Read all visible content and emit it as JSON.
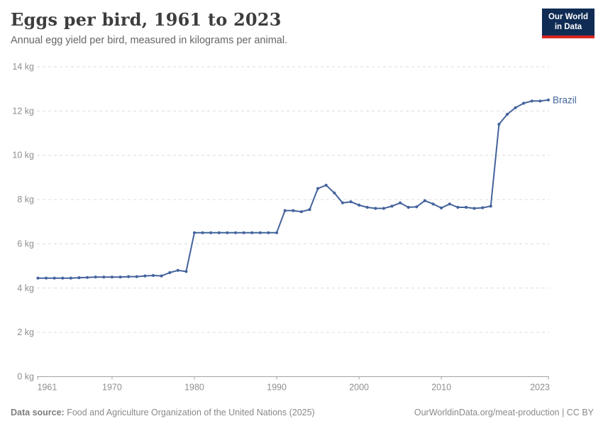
{
  "header": {
    "title": "Eggs per bird, 1961 to 2023",
    "subtitle": "Annual egg yield per bird, measured in kilograms per animal."
  },
  "logo": {
    "line1": "Our World",
    "line2": "in Data",
    "bg_color": "#102c54",
    "accent_color": "#d8261f"
  },
  "footer": {
    "source_label": "Data source:",
    "source_text": " Food and Agriculture Organization of the United Nations (2025)",
    "link_text": "OurWorldinData.org/meat-production | CC BY"
  },
  "chart_data": {
    "type": "line",
    "title": "Eggs per bird, 1961 to 2023",
    "xlabel": "",
    "ylabel": "kilograms per animal",
    "xlim": [
      1961,
      2023
    ],
    "ylim": [
      0,
      14
    ],
    "grid": "horizontal-dashed",
    "legend_position": "end-of-line-label",
    "x_ticks": [
      1961,
      1970,
      1980,
      1990,
      2000,
      2010,
      2023
    ],
    "y_ticks": [
      0,
      2,
      4,
      6,
      8,
      10,
      12,
      14
    ],
    "y_tick_suffix": " kg",
    "colors": {
      "line": "#44639c",
      "grid": "#dcdcdc",
      "axis": "#a3a3a3",
      "tick_text": "#8f8f8f"
    },
    "series": [
      {
        "name": "Brazil",
        "color": "#44639c",
        "x": [
          1961,
          1962,
          1963,
          1964,
          1965,
          1966,
          1967,
          1968,
          1969,
          1970,
          1971,
          1972,
          1973,
          1974,
          1975,
          1976,
          1977,
          1978,
          1979,
          1980,
          1981,
          1982,
          1983,
          1984,
          1985,
          1986,
          1987,
          1988,
          1989,
          1990,
          1991,
          1992,
          1993,
          1994,
          1995,
          1996,
          1997,
          1998,
          1999,
          2000,
          2001,
          2002,
          2003,
          2004,
          2005,
          2006,
          2007,
          2008,
          2009,
          2010,
          2011,
          2012,
          2013,
          2014,
          2015,
          2016,
          2017,
          2018,
          2019,
          2020,
          2021,
          2022,
          2023
        ],
        "values": [
          4.45,
          4.45,
          4.45,
          4.45,
          4.45,
          4.47,
          4.48,
          4.5,
          4.5,
          4.5,
          4.5,
          4.52,
          4.52,
          4.55,
          4.57,
          4.55,
          4.7,
          4.8,
          4.75,
          6.5,
          6.5,
          6.5,
          6.5,
          6.5,
          6.5,
          6.5,
          6.5,
          6.5,
          6.5,
          6.5,
          7.5,
          7.5,
          7.45,
          7.55,
          8.5,
          8.65,
          8.3,
          7.85,
          7.9,
          7.75,
          7.65,
          7.6,
          7.6,
          7.7,
          7.85,
          7.65,
          7.67,
          7.95,
          7.8,
          7.62,
          7.8,
          7.65,
          7.65,
          7.6,
          7.63,
          7.7,
          11.4,
          11.85,
          12.15,
          12.35,
          12.45,
          12.45,
          12.5
        ]
      }
    ]
  }
}
